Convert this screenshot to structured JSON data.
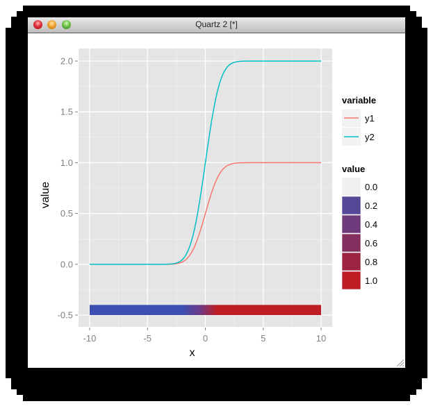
{
  "window": {
    "title": "Quartz 2 [*]",
    "buttons": [
      "close",
      "minimize",
      "zoom"
    ]
  },
  "chart_data": {
    "type": "line",
    "title": "",
    "xlabel": "x",
    "ylabel": "value",
    "xlim": [
      -10,
      10
    ],
    "ylim": [
      -0.6,
      2.1
    ],
    "x_ticks": [
      -10,
      -5,
      0,
      5,
      10
    ],
    "x_tick_labels": [
      "-10",
      "-5",
      "0",
      "5",
      "10"
    ],
    "y_ticks": [
      -0.5,
      0.0,
      0.5,
      1.0,
      1.5,
      2.0
    ],
    "y_tick_labels": [
      "-0.5",
      "0.0",
      "0.5",
      "1.0",
      "1.5",
      "2.0"
    ],
    "grid": true,
    "legend_position": "right",
    "x": [
      -10,
      -5,
      -3,
      -2.5,
      -2,
      -1.5,
      -1,
      -0.5,
      0,
      0.5,
      1,
      1.5,
      2,
      2.5,
      3,
      5,
      10
    ],
    "series": [
      {
        "name": "y1",
        "color": "#F8766D",
        "values": [
          0,
          0,
          0.001,
          0.006,
          0.023,
          0.067,
          0.159,
          0.309,
          0.5,
          0.691,
          0.841,
          0.933,
          0.977,
          0.994,
          0.999,
          1,
          1
        ]
      },
      {
        "name": "y2",
        "color": "#00BFC4",
        "values": [
          0,
          0,
          0.003,
          0.012,
          0.046,
          0.134,
          0.317,
          0.617,
          1.0,
          1.383,
          1.683,
          1.866,
          1.954,
          1.988,
          1.997,
          2,
          2
        ]
      }
    ],
    "tile_bar": {
      "y": -0.45,
      "height": 0.1,
      "x_range": [
        -10,
        10
      ],
      "fill": "pnorm(x) gradient",
      "low_color": "#3D4FB0",
      "high_color": "#BE1E24"
    },
    "legends": [
      {
        "title": "variable",
        "entries": [
          {
            "label": "y1",
            "color": "#F8766D"
          },
          {
            "label": "y2",
            "color": "#00BFC4"
          }
        ]
      },
      {
        "title": "value",
        "entries": [
          {
            "label": "0.0",
            "color": "#F0F0F0"
          },
          {
            "label": "0.2",
            "color": "#544897"
          },
          {
            "label": "0.4",
            "color": "#6E3A7B"
          },
          {
            "label": "0.6",
            "color": "#83305F"
          },
          {
            "label": "0.8",
            "color": "#9C2543"
          },
          {
            "label": "1.0",
            "color": "#BE1E24"
          }
        ]
      }
    ]
  }
}
